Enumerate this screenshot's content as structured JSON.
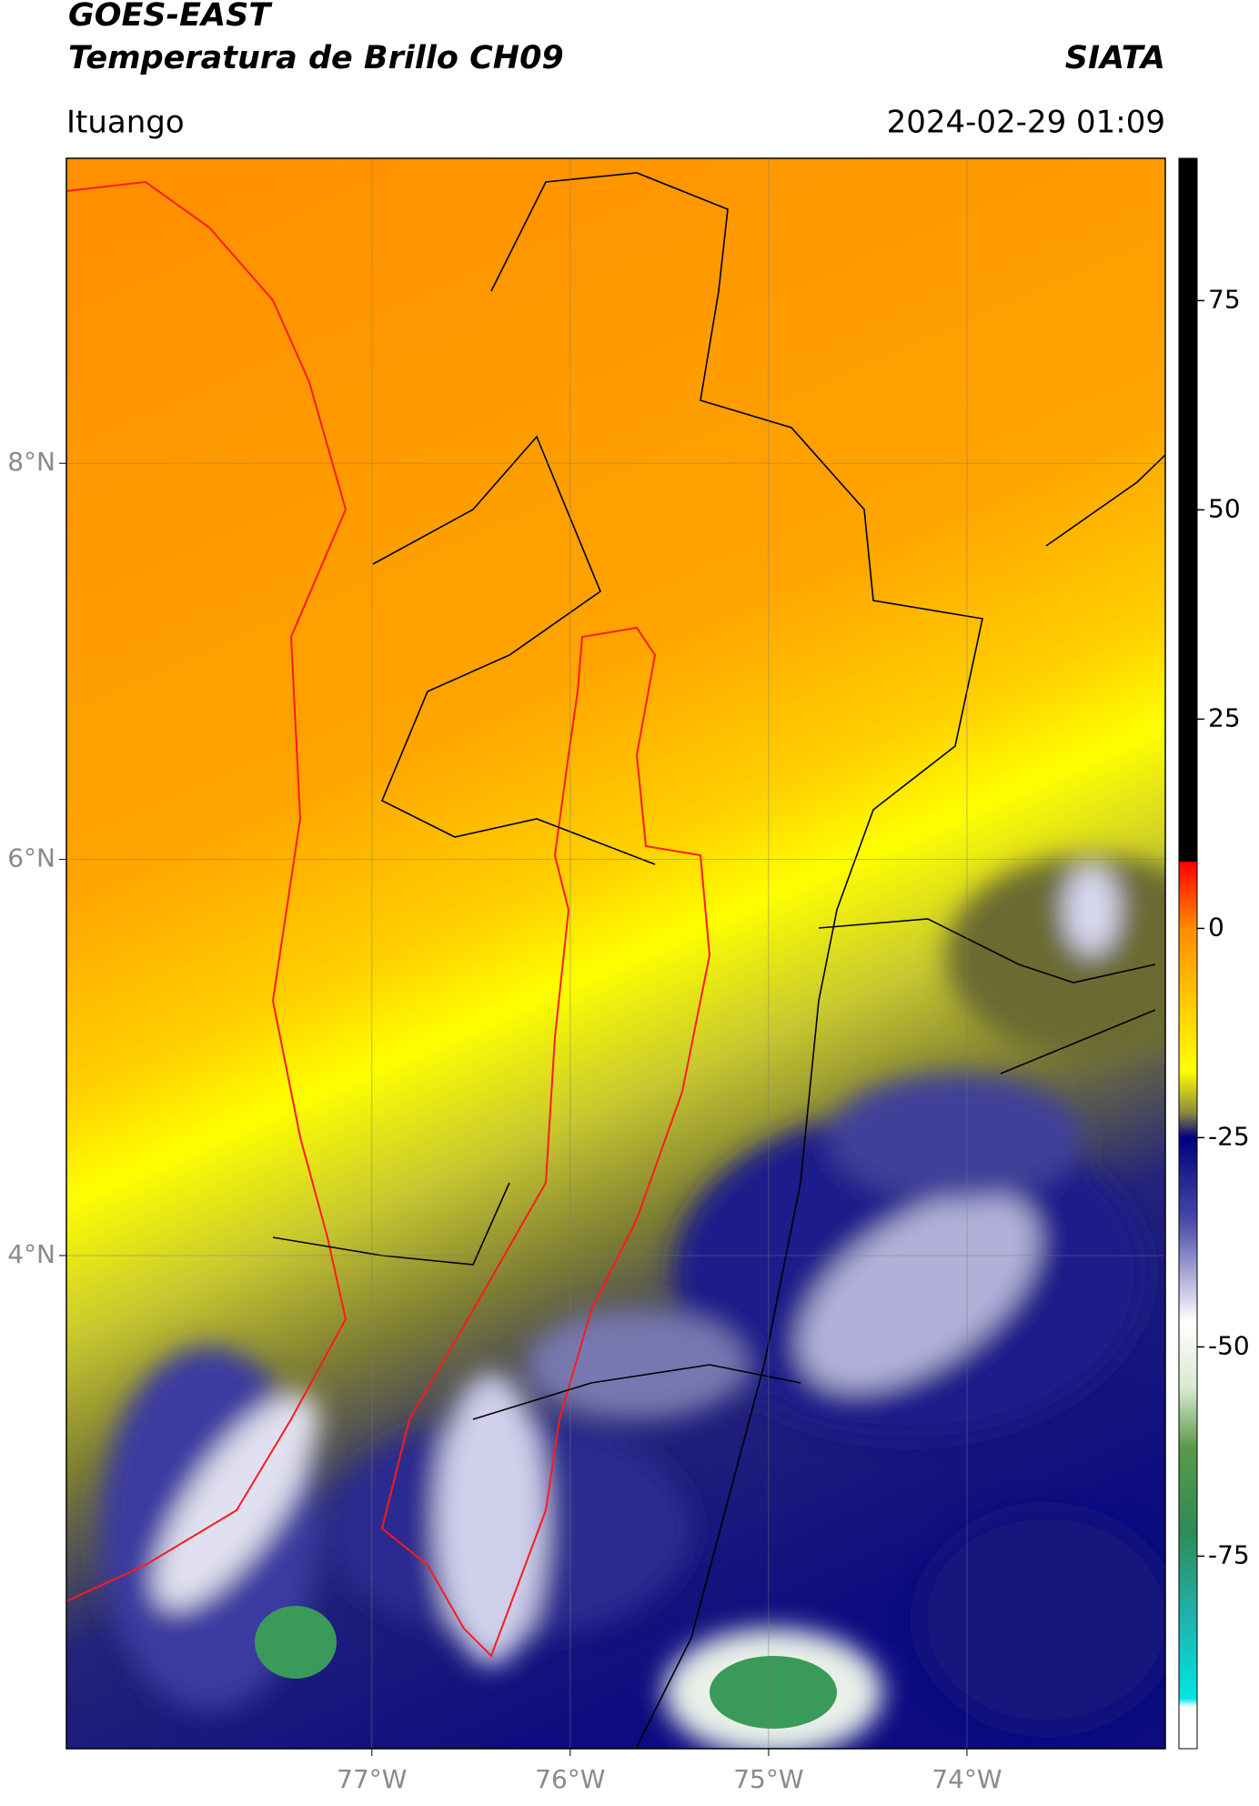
{
  "header": {
    "title": "GOES-EAST",
    "subtitle": "Temperatura de Brillo CH09",
    "source": "SIATA",
    "location": "Ituango",
    "datetime": "2024-02-29 01:09"
  },
  "map": {
    "xlim": [
      -78.54,
      -73.0
    ],
    "ylim": [
      1.51,
      9.54
    ],
    "xticks": [
      {
        "value": -77,
        "label": "77°W"
      },
      {
        "value": -76,
        "label": "76°W"
      },
      {
        "value": -75,
        "label": "75°W"
      },
      {
        "value": -74,
        "label": "74°W"
      }
    ],
    "yticks": [
      {
        "value": 8,
        "label": "8°N"
      },
      {
        "value": 6,
        "label": "6°N"
      },
      {
        "value": 4,
        "label": "4°N"
      }
    ],
    "grid": true
  },
  "colorbar": {
    "lim": [
      -98,
      92
    ],
    "ticks": [
      75,
      50,
      25,
      0,
      -25,
      -50,
      -75
    ],
    "stops": [
      [
        92,
        "#000000"
      ],
      [
        8,
        "#000000"
      ],
      [
        8,
        "#ff0000"
      ],
      [
        0,
        "#ff8c00"
      ],
      [
        -10,
        "#ffd200"
      ],
      [
        -17,
        "#ffff00"
      ],
      [
        -22,
        "#8c8c3c"
      ],
      [
        -25,
        "#00007f"
      ],
      [
        -35,
        "#4a4aa8"
      ],
      [
        -47,
        "#ffffff"
      ],
      [
        -55,
        "#d8e8d0"
      ],
      [
        -62,
        "#5a9a4a"
      ],
      [
        -72,
        "#2e8b57"
      ],
      [
        -82,
        "#20b2aa"
      ],
      [
        -92,
        "#00e5e5"
      ],
      [
        -93,
        "#ffffff"
      ],
      [
        -98,
        "#ffffff"
      ]
    ]
  }
}
